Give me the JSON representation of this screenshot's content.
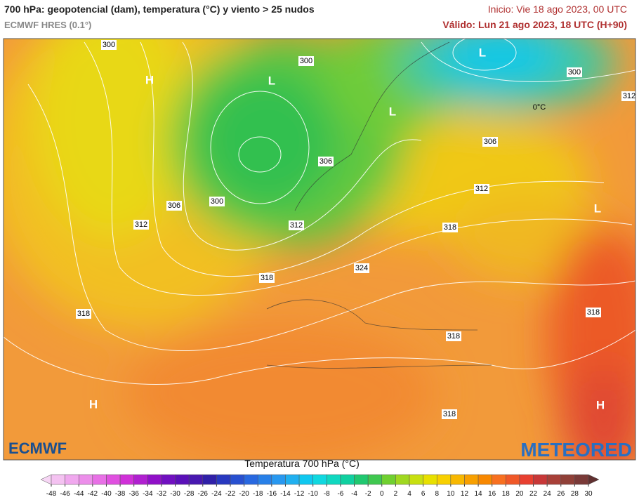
{
  "header": {
    "title": "700 hPa: geopotencial (dam), temperatura (°C) y viento > 25 nudos",
    "model": "ECMWF HRES (0.1°)",
    "init": "Inicio: Vie 18 ago 2023, 00 UTC",
    "valid": "Válido: Lun 21 ago 2023, 18 UTC (H+90)"
  },
  "map": {
    "labels": [
      "300",
      "300",
      "300",
      "312",
      "H",
      "L",
      "L",
      "L",
      "0°C",
      "306",
      "306",
      "306",
      "300",
      "312",
      "312",
      "312",
      "318",
      "L",
      "324",
      "318",
      "318",
      "318",
      "318",
      "H",
      "H",
      "318"
    ],
    "logos": [
      "ECMWF",
      "METEORED"
    ]
  },
  "colorbar": {
    "title": "Temperatura 700 hPa (°C)",
    "ticks": [
      -48,
      -46,
      -44,
      -42,
      -40,
      -38,
      -36,
      -34,
      -32,
      -30,
      -28,
      -26,
      -24,
      -22,
      -20,
      -18,
      -16,
      -14,
      -12,
      -10,
      -8,
      -6,
      -4,
      -2,
      0,
      2,
      4,
      6,
      8,
      10,
      12,
      14,
      16,
      18,
      20,
      22,
      24,
      26,
      28,
      30
    ],
    "colors": [
      "#f7d6f5",
      "#f4c2f1",
      "#f0a8ee",
      "#ec8eea",
      "#e870e6",
      "#e050e0",
      "#d030d8",
      "#b020d0",
      "#9010c8",
      "#7010c0",
      "#5a10b8",
      "#4818b0",
      "#3020a8",
      "#2838c0",
      "#2850d0",
      "#2868e0",
      "#2880e8",
      "#2898f0",
      "#20b0f0",
      "#10c8f0",
      "#10d8e0",
      "#10d8c0",
      "#10d0a0",
      "#20c870",
      "#40c850",
      "#70d030",
      "#a0d820",
      "#c8e010",
      "#e8e000",
      "#f8d000",
      "#f8b800",
      "#f8a000",
      "#f88800",
      "#f87020",
      "#f05828",
      "#e84030",
      "#c83838",
      "#a84038",
      "#904038",
      "#7a3a38",
      "#603030"
    ]
  }
}
